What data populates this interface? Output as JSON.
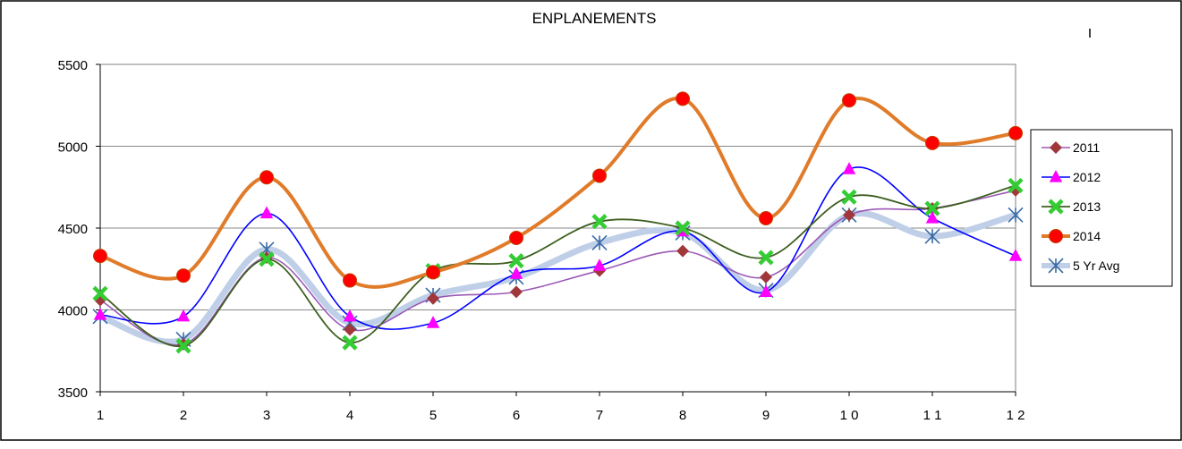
{
  "chart_data": {
    "type": "line",
    "title": "ENPLANEMENTS",
    "xlabel": "",
    "ylabel": "",
    "x_ticks": [
      "1",
      "2",
      "3",
      "4",
      "5",
      "6",
      "7",
      "8",
      "9",
      "1 0",
      "1 1",
      "1 2"
    ],
    "ylim": [
      3500,
      5500
    ],
    "y_ticks": [
      "3500",
      "4000",
      "4500",
      "5000",
      "5500"
    ],
    "y_tick_values": [
      3500,
      4000,
      4500,
      5000,
      5500
    ],
    "grid": true,
    "legend_position": "right",
    "series": [
      {
        "name": "2011",
        "values": [
          4060,
          3790,
          4320,
          3880,
          4070,
          4110,
          4240,
          4360,
          4200,
          4580,
          4620,
          4730
        ],
        "color": "#9b59b6",
        "marker": "diamond",
        "marker_color": "#a0383b"
      },
      {
        "name": "2012",
        "values": [
          3970,
          3960,
          4590,
          3960,
          3920,
          4220,
          4270,
          4480,
          4110,
          4860,
          4560,
          4330
        ],
        "color": "#0000ff",
        "marker": "triangle",
        "marker_color": "#ff00ff"
      },
      {
        "name": "2013",
        "values": [
          4100,
          3780,
          4310,
          3800,
          4240,
          4300,
          4540,
          4500,
          4320,
          4690,
          4620,
          4760
        ],
        "color": "#3d5f1f",
        "marker": "x-cross",
        "marker_color": "#33cc33"
      },
      {
        "name": "2014",
        "values": [
          4330,
          4210,
          4810,
          4180,
          4230,
          4440,
          4820,
          5290,
          4560,
          5280,
          5020,
          5080
        ],
        "color": "#e07b2a",
        "marker": "circle",
        "marker_color": "#ff0000"
      },
      {
        "name": "5 Yr Avg",
        "values": [
          3960,
          3820,
          4370,
          3920,
          4090,
          4200,
          4410,
          4470,
          4120,
          4580,
          4450,
          4580
        ],
        "color": "#c0cfe8",
        "marker": "asterisk",
        "marker_color": "#3a6ba5"
      }
    ]
  }
}
